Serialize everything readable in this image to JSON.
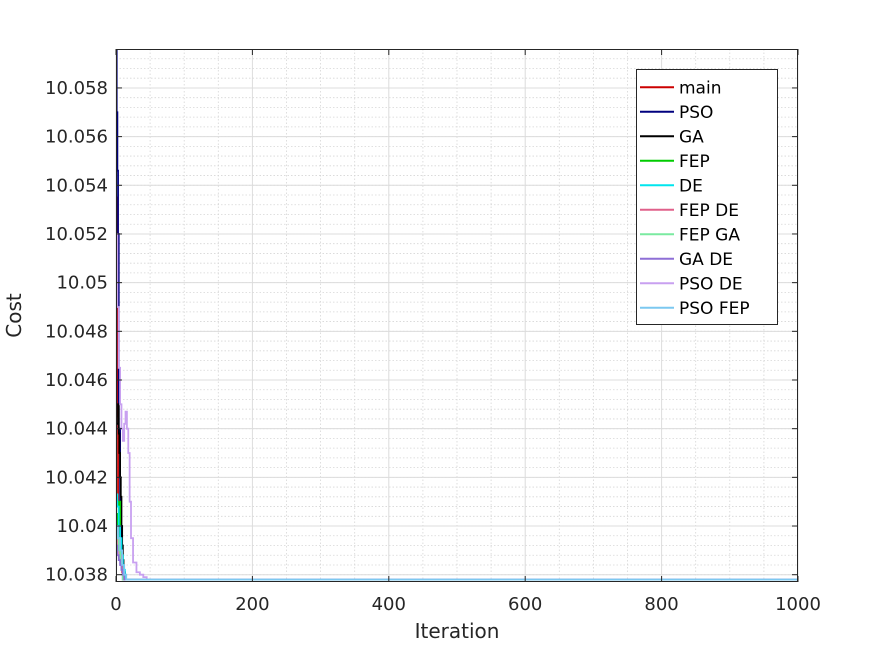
{
  "chart_data": {
    "type": "line",
    "title": "",
    "xlabel": "Iteration",
    "ylabel": "Cost",
    "xlim": [
      0,
      1000
    ],
    "ylim": [
      10.0377,
      10.0596
    ],
    "x_ticks": [
      0,
      200,
      400,
      600,
      800,
      1000
    ],
    "x_tick_labels": [
      "0",
      "200",
      "400",
      "600",
      "800",
      "1000"
    ],
    "y_ticks": [
      10.038,
      10.04,
      10.042,
      10.044,
      10.046,
      10.048,
      10.05,
      10.052,
      10.054,
      10.056,
      10.058
    ],
    "y_tick_labels": [
      "10.038",
      "10.04",
      "10.042",
      "10.044",
      "10.046",
      "10.048",
      "10.05",
      "10.052",
      "10.054",
      "10.056",
      "10.058"
    ],
    "grid": true,
    "minor_grid": true,
    "legend_position": "top-right",
    "series": [
      {
        "name": "main",
        "color": "#cc0000",
        "x": [
          0,
          1,
          2,
          3,
          5,
          7,
          9,
          12,
          1000
        ],
        "y": [
          10.0535,
          10.0515,
          10.0445,
          10.041,
          10.0392,
          10.0385,
          10.0381,
          10.0378,
          10.0378
        ]
      },
      {
        "name": "PSO",
        "color": "#00007f",
        "x": [
          0,
          1,
          2,
          3,
          4,
          6,
          8,
          10,
          1000
        ],
        "y": [
          10.0596,
          10.057,
          10.0546,
          10.052,
          10.044,
          10.04,
          10.0385,
          10.0378,
          10.0378
        ]
      },
      {
        "name": "GA",
        "color": "#000000",
        "x": [
          0,
          3,
          4,
          5,
          6,
          7,
          8,
          9,
          10,
          11,
          13,
          1000
        ],
        "y": [
          10.0442,
          10.045,
          10.0438,
          10.043,
          10.042,
          10.0412,
          10.04,
          10.0392,
          10.0386,
          10.0381,
          10.0378,
          10.0378
        ]
      },
      {
        "name": "FEP",
        "color": "#00cc00",
        "x": [
          0,
          2,
          4,
          6,
          8,
          10,
          12,
          1000
        ],
        "y": [
          10.0395,
          10.0405,
          10.041,
          10.039,
          10.0384,
          10.038,
          10.0378,
          10.0378
        ]
      },
      {
        "name": "DE",
        "color": "#00e5ee",
        "x": [
          0,
          2,
          4,
          6,
          8,
          10,
          13,
          1000
        ],
        "y": [
          10.0413,
          10.0408,
          10.04,
          10.0395,
          10.0388,
          10.0382,
          10.0378,
          10.0378
        ]
      },
      {
        "name": "FEP DE",
        "color": "#e0608a",
        "x": [
          0,
          3,
          5,
          7,
          9,
          11,
          1000
        ],
        "y": [
          10.0396,
          10.0392,
          10.0388,
          10.0384,
          10.0381,
          10.0378,
          10.0378
        ]
      },
      {
        "name": "FEP GA",
        "color": "#7aeaa0",
        "x": [
          0,
          2,
          4,
          6,
          8,
          10,
          1000
        ],
        "y": [
          10.04,
          10.0395,
          10.039,
          10.0386,
          10.0382,
          10.0378,
          10.0378
        ]
      },
      {
        "name": "GA DE",
        "color": "#8e6fd6",
        "x": [
          0,
          2,
          4,
          6,
          8,
          10,
          12,
          1000
        ],
        "y": [
          10.0392,
          10.0388,
          10.0386,
          10.0384,
          10.0382,
          10.038,
          10.0378,
          10.0378
        ]
      },
      {
        "name": "PSO DE",
        "color": "#c8a0f0",
        "x": [
          0,
          2,
          4,
          6,
          8,
          10,
          12,
          14,
          16,
          18,
          20,
          22,
          25,
          30,
          35,
          40,
          45,
          1000
        ],
        "y": [
          10.052,
          10.049,
          10.0465,
          10.045,
          10.044,
          10.0435,
          10.0442,
          10.0447,
          10.044,
          10.043,
          10.041,
          10.0395,
          10.0385,
          10.0381,
          10.038,
          10.0379,
          10.0378,
          10.0378
        ]
      },
      {
        "name": "PSO FEP",
        "color": "#7cc8f0",
        "x": [
          0,
          3,
          6,
          9,
          12,
          15,
          950,
          1000
        ],
        "y": [
          10.04,
          10.0395,
          10.039,
          10.0384,
          10.038,
          10.0378,
          10.0378,
          10.0378
        ]
      }
    ]
  }
}
